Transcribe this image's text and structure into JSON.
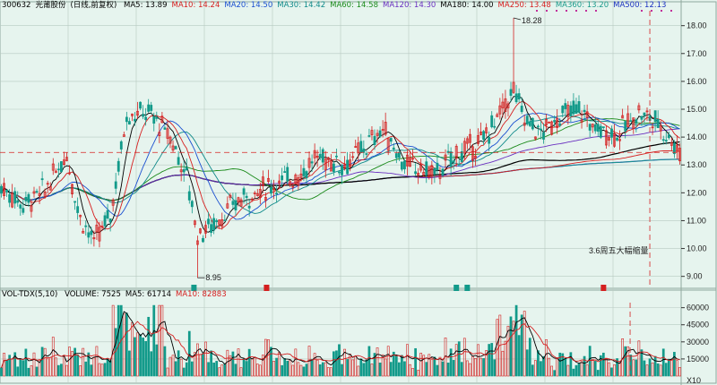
{
  "colors": {
    "bg": "#e6f4ee",
    "grid": "#b7c9c1",
    "up": "#d42020",
    "down": "#129a8a",
    "ma5": "#000000",
    "ma10": "#d62020",
    "ma20": "#1a4fd0",
    "ma30": "#108a8a",
    "ma60": "#1a8a1a",
    "ma120": "#6a30c0",
    "ma180": "#000000",
    "ma250": "#d62020",
    "ma360": "#1a9a8a",
    "ma500": "#1a30c0",
    "annotation": "#d62020"
  },
  "price_legend": {
    "code": "300632",
    "name": "光莆股份",
    "mode": "(日线,前复权)",
    "items": [
      {
        "label": "MA5: 13.89",
        "color": "#000000"
      },
      {
        "label": "MA10: 14.24",
        "color": "#d62020"
      },
      {
        "label": "MA20: 14.50",
        "color": "#1a4fd0"
      },
      {
        "label": "MA30: 14.42",
        "color": "#108a8a"
      },
      {
        "label": "MA60: 14.58",
        "color": "#1a8a1a"
      },
      {
        "label": "MA120: 14.30",
        "color": "#6a30c0"
      },
      {
        "label": "MA180: 14.00",
        "color": "#000000"
      },
      {
        "label": "MA250: 13.48",
        "color": "#d62020"
      },
      {
        "label": "MA360: 13.20",
        "color": "#1a9a8a"
      },
      {
        "label": "MA500: 12.13",
        "color": "#1a30c0"
      }
    ]
  },
  "volume_legend": {
    "title": "VOL-TDX(5,10)",
    "items": [
      {
        "label": "VOLUME: 7525",
        "color": "#000000"
      },
      {
        "label": "MA5: 61714",
        "color": "#000000"
      },
      {
        "label": "MA10: 82883",
        "color": "#d62020"
      }
    ]
  },
  "annotations": {
    "high_label": "18.28",
    "low_label": "8.95",
    "note": "3.6周五大幅缩量",
    "reference_price": 13.45
  },
  "chart_data": [
    {
      "type": "candlestick",
      "title": "300632 光莆股份 (日线,前复权)",
      "ylim": [
        8.7,
        18.6
      ],
      "y_ticks": [
        9.0,
        10.0,
        11.0,
        12.0,
        13.0,
        14.0,
        15.0,
        16.0,
        17.0,
        18.0
      ],
      "y_tick_labels": [
        "9.00",
        "10.00",
        "11.00",
        "12.00",
        "13.00",
        "14.00",
        "15.00",
        "16.00",
        "17.00",
        "18.00"
      ],
      "high": 18.28,
      "low": 8.95,
      "control_points": [
        [
          0,
          12.2
        ],
        [
          8,
          11.6
        ],
        [
          16,
          12.1
        ],
        [
          24,
          13.4
        ],
        [
          28,
          11.4
        ],
        [
          34,
          10.2
        ],
        [
          40,
          11.2
        ],
        [
          46,
          14.8
        ],
        [
          54,
          14.9
        ],
        [
          62,
          14.0
        ],
        [
          68,
          12.6
        ],
        [
          72,
          10.5
        ],
        [
          78,
          10.9
        ],
        [
          88,
          11.8
        ],
        [
          100,
          12.3
        ],
        [
          110,
          12.7
        ],
        [
          116,
          13.3
        ],
        [
          126,
          13.0
        ],
        [
          134,
          13.7
        ],
        [
          140,
          14.3
        ],
        [
          148,
          13.0
        ],
        [
          160,
          12.7
        ],
        [
          166,
          13.3
        ],
        [
          176,
          13.8
        ],
        [
          182,
          14.7
        ],
        [
          188,
          15.7
        ],
        [
          192,
          14.7
        ],
        [
          198,
          14.1
        ],
        [
          204,
          14.7
        ],
        [
          212,
          15.0
        ],
        [
          218,
          14.3
        ],
        [
          226,
          14.1
        ],
        [
          234,
          14.9
        ],
        [
          240,
          14.6
        ],
        [
          246,
          13.9
        ],
        [
          249,
          13.4
        ]
      ],
      "candle_count": 250,
      "series": [
        {
          "name": "MA5",
          "value": 13.89
        },
        {
          "name": "MA10",
          "value": 14.24
        },
        {
          "name": "MA20",
          "value": 14.5
        },
        {
          "name": "MA30",
          "value": 14.42
        },
        {
          "name": "MA60",
          "value": 14.58
        },
        {
          "name": "MA120",
          "value": 14.3
        },
        {
          "name": "MA180",
          "value": 14.0
        },
        {
          "name": "MA250",
          "value": 13.48
        },
        {
          "name": "MA360",
          "value": 13.2
        },
        {
          "name": "MA500",
          "value": 12.13
        }
      ]
    },
    {
      "type": "bar",
      "title": "VOL-TDX(5,10)",
      "ylim": [
        0,
        66000
      ],
      "y_ticks": [
        15000,
        30000,
        45000,
        60000
      ],
      "y_tick_labels": [
        "15000",
        "30000",
        "45000",
        "60000"
      ],
      "multiplier_label": "X10",
      "series": [
        {
          "name": "VOLUME",
          "value": 7525
        },
        {
          "name": "MA5",
          "value": 61714
        },
        {
          "name": "MA10",
          "value": 82883
        }
      ]
    }
  ]
}
